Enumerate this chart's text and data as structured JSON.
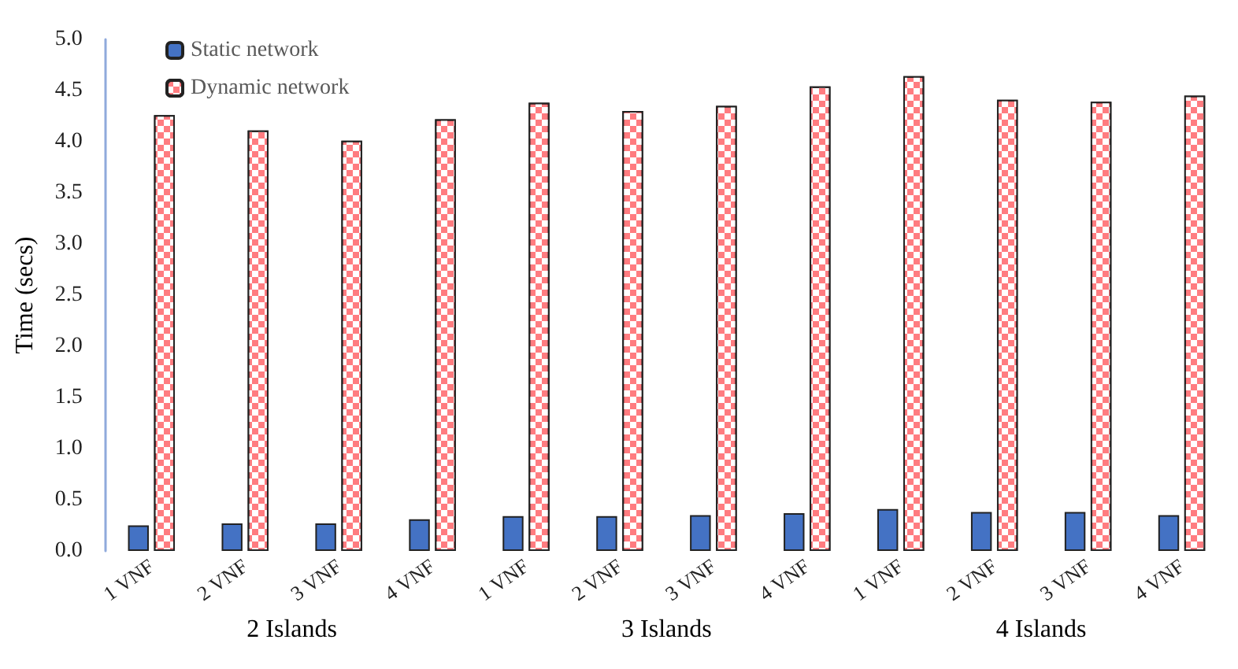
{
  "chart_data": {
    "type": "bar",
    "ylabel": "Time (secs)",
    "categories": [
      "1 VNF",
      "2 VNF",
      "3 VNF",
      "4 VNF",
      "1 VNF",
      "2 VNF",
      "3 VNF",
      "4 VNF",
      "1 VNF",
      "2 VNF",
      "3 VNF",
      "4 VNF"
    ],
    "series": [
      {
        "name": "Static network",
        "color": "#4472c4",
        "values": [
          0.25,
          0.27,
          0.27,
          0.31,
          0.34,
          0.34,
          0.35,
          0.37,
          0.41,
          0.38,
          0.38,
          0.35
        ]
      },
      {
        "name": "Dynamic network",
        "color": "#ff7c80",
        "values": [
          4.26,
          4.11,
          4.01,
          4.22,
          4.38,
          4.3,
          4.35,
          4.54,
          4.64,
          4.41,
          4.39,
          4.45
        ]
      }
    ],
    "annotations": [
      "2 Islands",
      "3 Islands",
      "4 Islands"
    ],
    "ylim": [
      0,
      5
    ],
    "yticks": [
      {
        "value": 0,
        "label": "0.0"
      },
      0.5,
      {
        "value": 1,
        "label": "1.0"
      },
      1.5,
      {
        "value": 2,
        "label": "2.0"
      },
      2.5,
      {
        "value": 3,
        "label": "3.0"
      },
      3.5,
      {
        "value": 4,
        "label": "4.0"
      },
      4.5,
      {
        "value": 5,
        "label": "5.0"
      }
    ],
    "grid": false,
    "legend": "top left"
  }
}
